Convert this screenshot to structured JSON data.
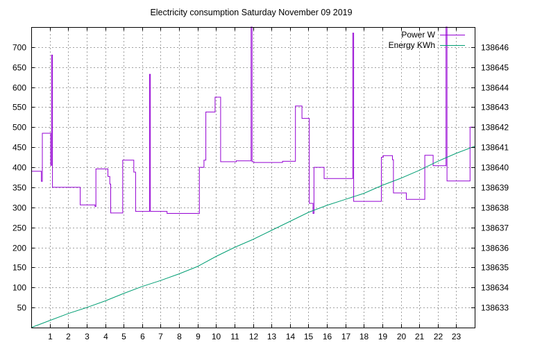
{
  "chart_data": {
    "type": "line",
    "title": "Electricity consumption Saturday November 09 2019",
    "xlabel": "",
    "ylabel": "",
    "y2label": "",
    "xlim": [
      0,
      24
    ],
    "ylim": [
      0,
      750
    ],
    "y2lim": [
      138632,
      138647
    ],
    "grid": true,
    "legend_position": "top-right",
    "x_ticks": [
      1,
      2,
      3,
      4,
      5,
      6,
      7,
      8,
      9,
      10,
      11,
      12,
      13,
      14,
      15,
      16,
      17,
      18,
      19,
      20,
      21,
      22,
      23
    ],
    "y_ticks": [
      50,
      100,
      150,
      200,
      250,
      300,
      350,
      400,
      450,
      500,
      550,
      600,
      650,
      700
    ],
    "y2_ticks": [
      138633,
      138634,
      138635,
      138636,
      138637,
      138638,
      138639,
      138640,
      138641,
      138642,
      138643,
      138644,
      138645,
      138646
    ],
    "series": [
      {
        "name": "Power W",
        "axis": "left",
        "color": "#9400d3",
        "x": [
          0,
          0.55,
          0.55,
          0.6,
          0.6,
          1.05,
          1.05,
          1.1,
          1.1,
          1.15,
          1.15,
          1.2,
          1.2,
          2.65,
          2.65,
          3.45,
          3.45,
          3.5,
          3.5,
          4.15,
          4.15,
          4.25,
          4.25,
          4.3,
          4.3,
          4.95,
          4.95,
          5.55,
          5.55,
          5.65,
          5.65,
          6.4,
          6.4,
          6.45,
          6.45,
          7.35,
          7.35,
          9.1,
          9.1,
          9.35,
          9.35,
          9.45,
          9.45,
          9.95,
          9.95,
          10.25,
          10.25,
          11.1,
          11.1,
          11.9,
          11.9,
          11.95,
          11.95,
          12.05,
          12.05,
          12.4,
          12.4,
          13.6,
          13.6,
          14.3,
          14.3,
          14.65,
          14.65,
          15.05,
          15.05,
          15.25,
          15.25,
          15.3,
          15.3,
          15.85,
          15.85,
          17.4,
          17.4,
          17.45,
          17.45,
          18.95,
          18.95,
          19.05,
          19.05,
          19.55,
          19.55,
          19.6,
          19.6,
          20.3,
          20.3,
          21.3,
          21.3,
          21.75,
          21.75,
          22.45,
          22.45,
          22.5,
          22.5,
          23.75,
          23.75,
          24
        ],
        "y": [
          390,
          390,
          365,
          365,
          485,
          485,
          405,
          405,
          680,
          680,
          350,
          350,
          350,
          350,
          306,
          306,
          302,
          302,
          396,
          396,
          377,
          377,
          358,
          358,
          286,
          286,
          418,
          418,
          388,
          388,
          290,
          290,
          632,
          632,
          290,
          290,
          285,
          285,
          400,
          400,
          418,
          418,
          538,
          538,
          575,
          575,
          414,
          414,
          416,
          416,
          750,
          750,
          414,
          414,
          412,
          412,
          412,
          412,
          415,
          415,
          553,
          553,
          522,
          522,
          310,
          310,
          285,
          285,
          400,
          400,
          372,
          372,
          735,
          735,
          315,
          315,
          425,
          425,
          429,
          429,
          419,
          419,
          336,
          336,
          320,
          320,
          430,
          430,
          404,
          404,
          750,
          750,
          366,
          366,
          500,
          500
        ]
      },
      {
        "name": "Energy KWh",
        "axis": "right",
        "color": "#009e73",
        "x": [
          0,
          1,
          2,
          3,
          4,
          5,
          6,
          7,
          8,
          9,
          10,
          11,
          12,
          13,
          14,
          15,
          16,
          17,
          18,
          19,
          20,
          21,
          22,
          23,
          24
        ],
        "y": [
          138632.0,
          138632.35,
          138632.7,
          138633.0,
          138633.33,
          138633.7,
          138634.05,
          138634.35,
          138634.68,
          138635.05,
          138635.55,
          138636.0,
          138636.4,
          138636.85,
          138637.3,
          138637.75,
          138638.1,
          138638.4,
          138638.7,
          138639.1,
          138639.45,
          138639.85,
          138640.3,
          138640.7,
          138641.05
        ]
      }
    ]
  }
}
